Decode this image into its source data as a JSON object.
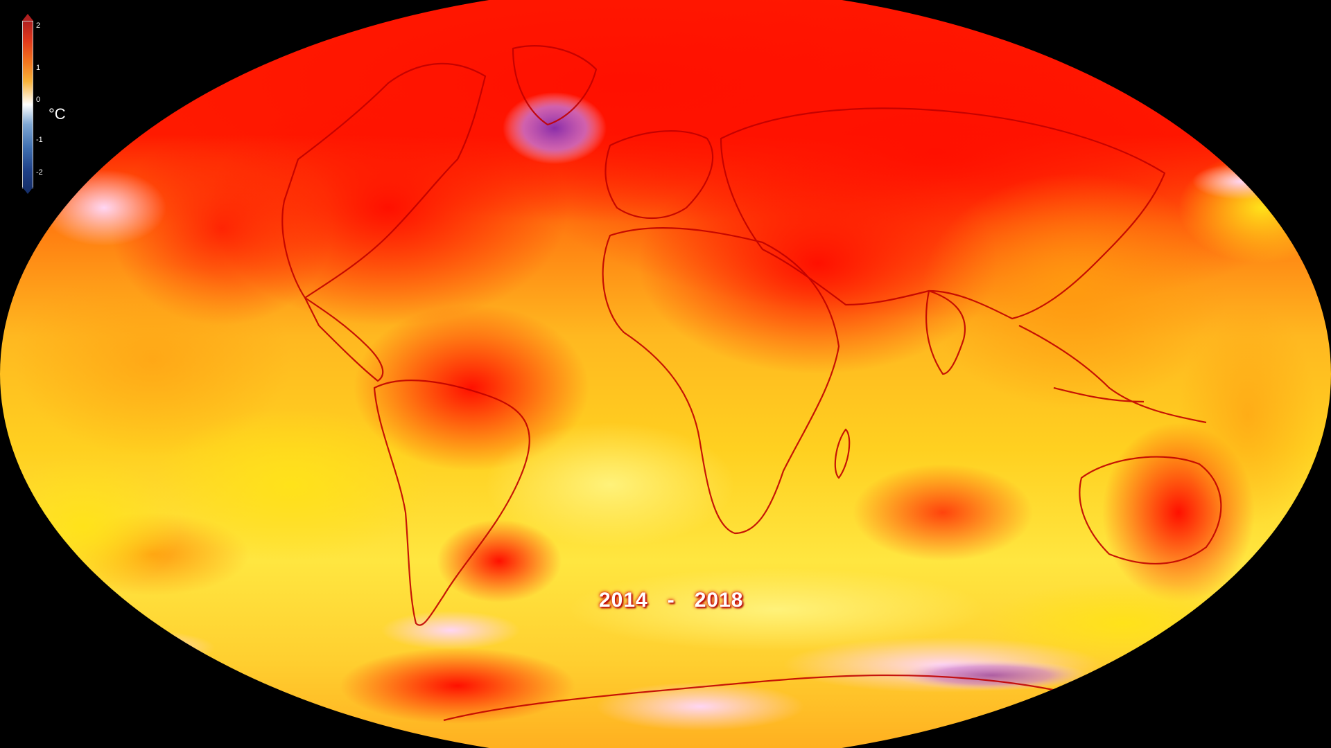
{
  "legend": {
    "ticks": [
      "2",
      "1",
      "0",
      "-1",
      "-2"
    ],
    "unit": "°C",
    "colors": {
      "max": "#b02020",
      "warm": "#f2741e",
      "neutral": "#ffffff",
      "cool": "#3f6fb0",
      "min": "#16306c"
    }
  },
  "period": {
    "start": "2014",
    "separator": "-",
    "end": "2018"
  },
  "map": {
    "projection": "Robinson",
    "ocean_color": "#ff1a00",
    "outline_color": "#cc0000",
    "background_color": "#000000"
  }
}
